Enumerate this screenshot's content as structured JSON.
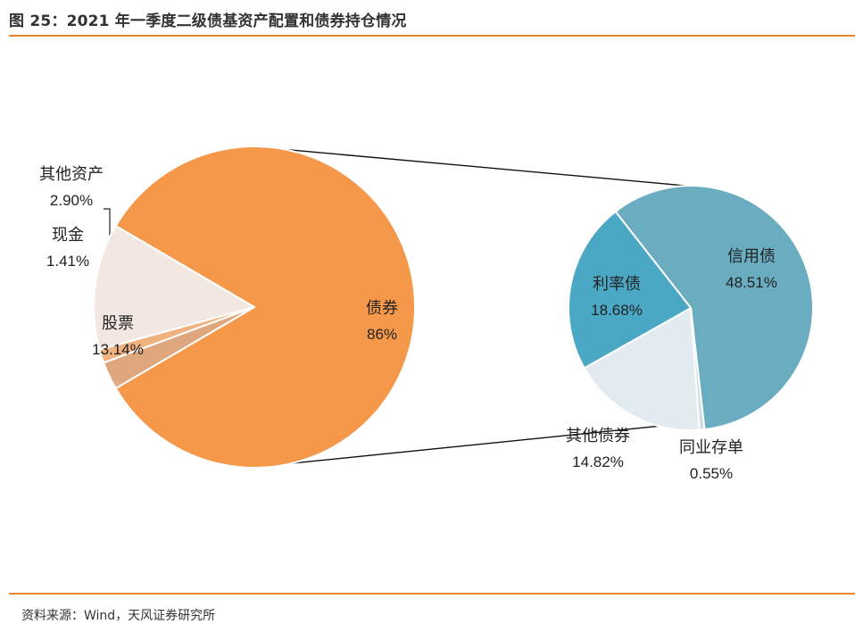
{
  "header": {
    "title": "图 25：2021 年一季度二级债基资产配置和债券持仓情况"
  },
  "footer": {
    "source": "资料来源：Wind，天风证券研究所"
  },
  "colors": {
    "accent": "#e8852f",
    "bonds": "#f5984a",
    "cash": "#f0b27f",
    "other_assets": "#dfa77d",
    "stocks": "#f3e8e1",
    "credit": "#6aadc0",
    "rate": "#4aa8c4",
    "other_bonds": "#e2ebef",
    "ncd": "#cfdde3"
  },
  "chart_data": [
    {
      "type": "pie",
      "title": "资产配置",
      "slices": [
        {
          "key": "bonds",
          "label": "债券",
          "value": 86,
          "value_label": "86%"
        },
        {
          "key": "other_assets",
          "label": "其他资产",
          "value": 2.9,
          "value_label": "2.90%"
        },
        {
          "key": "cash",
          "label": "现金",
          "value": 1.41,
          "value_label": "1.41%"
        },
        {
          "key": "stocks",
          "label": "股票",
          "value": 13.14,
          "value_label": "13.14%"
        }
      ]
    },
    {
      "type": "pie",
      "title": "债券持仓",
      "slices": [
        {
          "key": "credit",
          "label": "信用债",
          "value": 48.51,
          "value_label": "48.51%"
        },
        {
          "key": "ncd",
          "label": "同业存单",
          "value": 0.55,
          "value_label": "0.55%"
        },
        {
          "key": "other_bonds",
          "label": "其他债券",
          "value": 14.82,
          "value_label": "14.82%"
        },
        {
          "key": "rate",
          "label": "利率债",
          "value": 18.68,
          "value_label": "18.68%"
        }
      ]
    }
  ]
}
